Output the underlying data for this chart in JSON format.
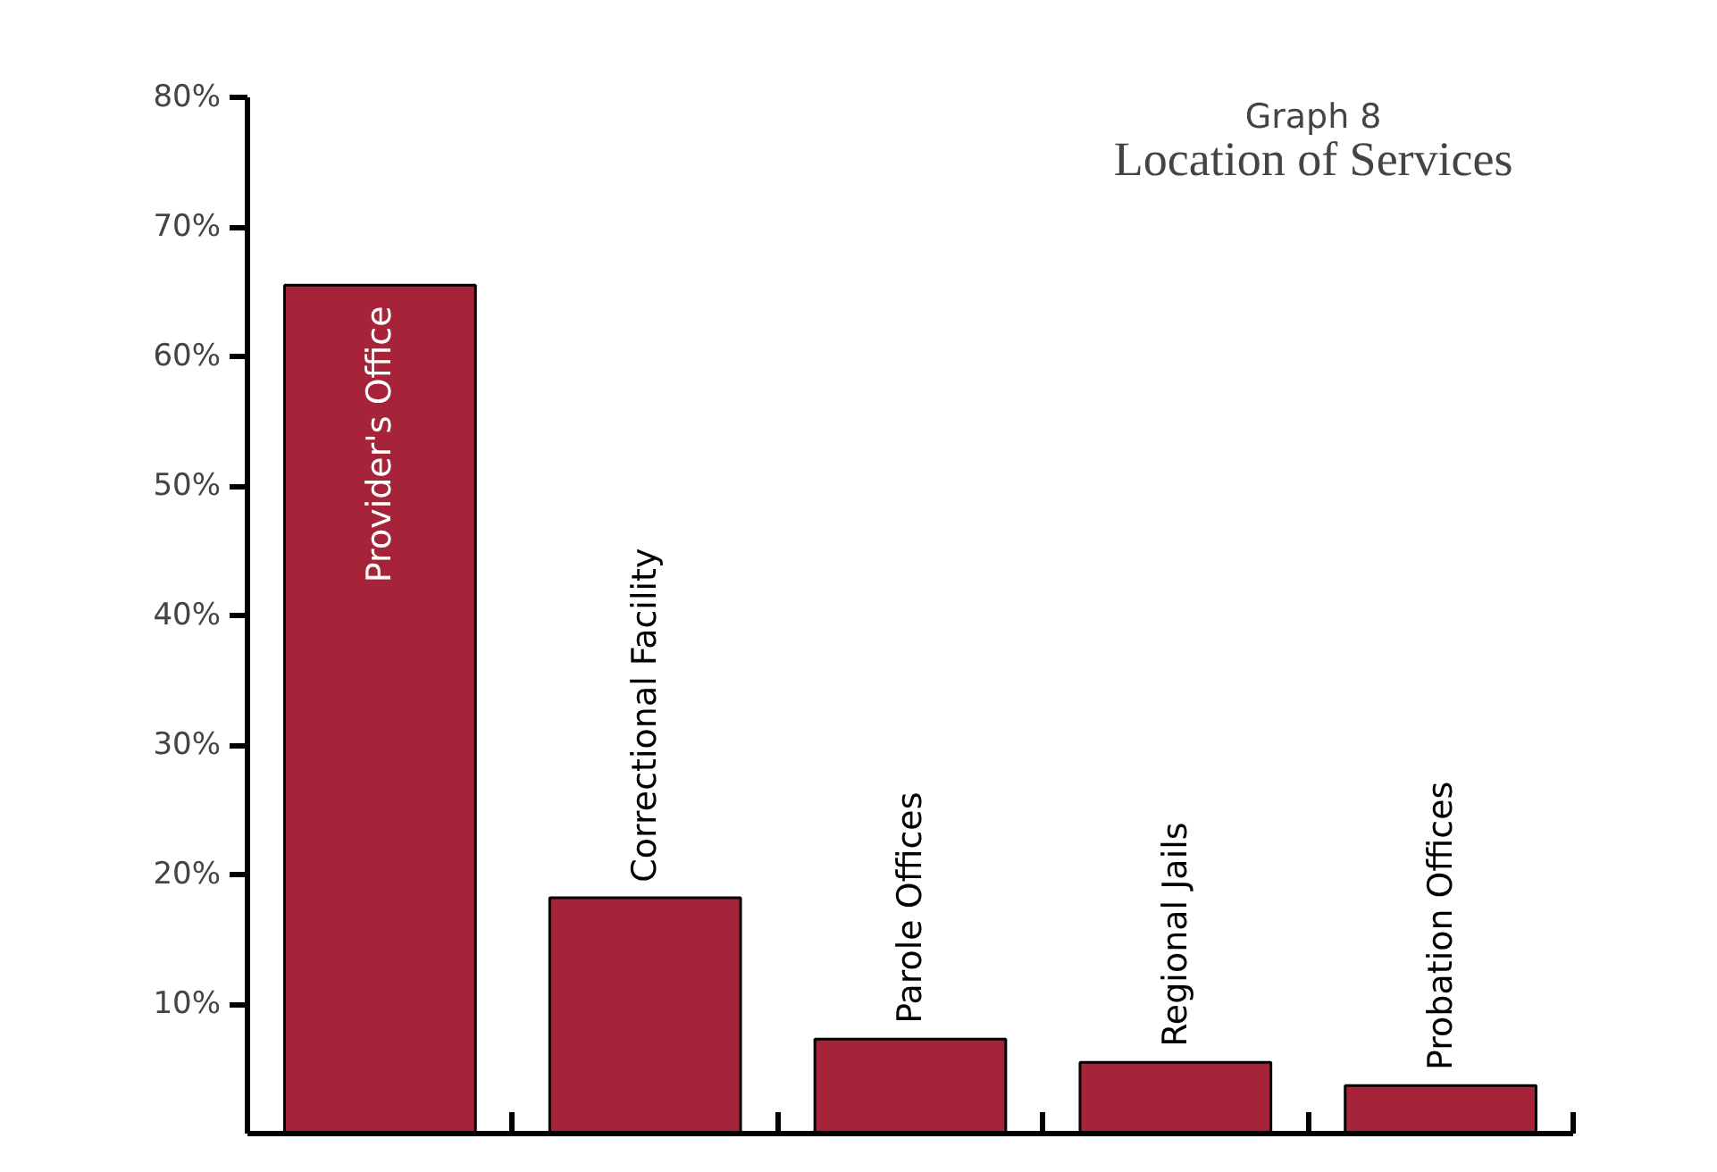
{
  "chart_data": {
    "type": "bar",
    "title": "Graph 8",
    "subtitle": "Location of Services",
    "categories": [
      "Provider's Office",
      "Correctional Facility",
      "Parole Offices",
      "Regional Jails",
      "Probation Offices"
    ],
    "values": [
      65.5,
      18.2,
      7.3,
      5.5,
      3.7
    ],
    "color": "#a6233a",
    "ylim": [
      0,
      80
    ],
    "yticks": [
      {
        "value": 10,
        "label": "10%"
      },
      {
        "value": 20,
        "label": "20%"
      },
      {
        "value": 30,
        "label": "30%"
      },
      {
        "value": 40,
        "label": "40%"
      },
      {
        "value": 50,
        "label": "50%"
      },
      {
        "value": 60,
        "label": "60%"
      },
      {
        "value": 70,
        "label": "70%"
      },
      {
        "value": 80,
        "label": "80%"
      }
    ],
    "grid": false
  }
}
